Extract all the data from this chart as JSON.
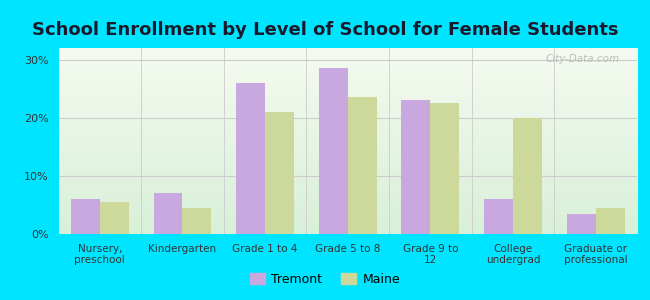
{
  "title": "School Enrollment by Level of School for Female Students",
  "categories": [
    "Nursery,\npreschool",
    "Kindergarten",
    "Grade 1 to 4",
    "Grade 5 to 8",
    "Grade 9 to\n12",
    "College\nundergrad",
    "Graduate or\nprofessional"
  ],
  "tremont_values": [
    6.0,
    7.0,
    26.0,
    28.5,
    23.0,
    6.0,
    3.5
  ],
  "maine_values": [
    5.5,
    4.5,
    21.0,
    23.5,
    22.5,
    20.0,
    4.5
  ],
  "tremont_color": "#c9a8e0",
  "maine_color": "#ccd99a",
  "background_outer": "#00e5ff",
  "background_inner_top": "#f5faf0",
  "background_inner_bottom": "#d8f0d8",
  "ylim": [
    0,
    32
  ],
  "yticks": [
    0,
    10,
    20,
    30
  ],
  "ytick_labels": [
    "0%",
    "10%",
    "20%",
    "30%"
  ],
  "title_fontsize": 13,
  "legend_labels": [
    "Tremont",
    "Maine"
  ],
  "watermark": "City-Data.com",
  "bar_width": 0.35,
  "grid_color": "#cccccc"
}
